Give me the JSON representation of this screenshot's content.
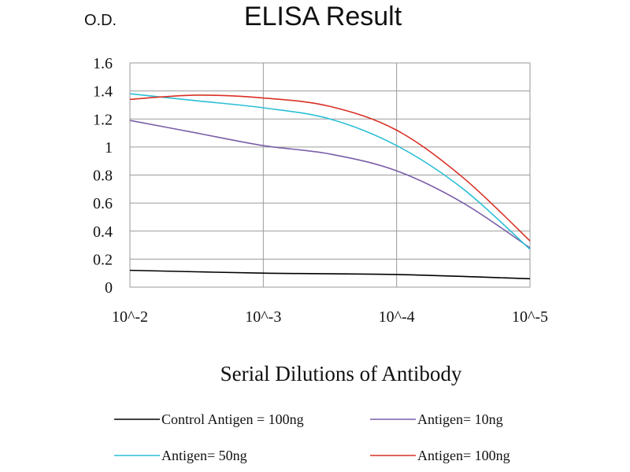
{
  "chart_data": {
    "type": "line",
    "title": "ELISA Result",
    "ylabel": "O.D.",
    "xlabel": "Serial Dilutions of Antibody",
    "categories": [
      "10^-2",
      "10^-3",
      "10^-4",
      "10^-5"
    ],
    "ylim": [
      0,
      1.6
    ],
    "yticks": [
      "0",
      "0.2",
      "0.4",
      "0.6",
      "0.8",
      "1",
      "1.2",
      "1.4",
      "1.6"
    ],
    "grid": true,
    "legend_position": "bottom",
    "series": [
      {
        "name": "Control Antigen = 100ng",
        "color": "#000000",
        "points": [
          [
            0,
            0.12
          ],
          [
            1,
            0.1
          ],
          [
            2,
            0.09
          ],
          [
            3,
            0.06
          ]
        ]
      },
      {
        "name": "Antigen= 10ng",
        "color": "#7b5ea8",
        "points": [
          [
            0,
            1.19
          ],
          [
            0.5,
            1.1
          ],
          [
            1,
            1.01
          ],
          [
            1.5,
            0.95
          ],
          [
            2,
            0.83
          ],
          [
            2.5,
            0.6
          ],
          [
            3,
            0.28
          ]
        ]
      },
      {
        "name": "Antigen= 50ng",
        "color": "#2bbfd6",
        "points": [
          [
            0,
            1.38
          ],
          [
            0.5,
            1.33
          ],
          [
            1,
            1.28
          ],
          [
            1.5,
            1.2
          ],
          [
            2,
            1.01
          ],
          [
            2.5,
            0.7
          ],
          [
            3,
            0.27
          ]
        ]
      },
      {
        "name": "Antigen= 100ng",
        "color": "#d93025",
        "points": [
          [
            0,
            1.34
          ],
          [
            0.5,
            1.37
          ],
          [
            1,
            1.35
          ],
          [
            1.5,
            1.29
          ],
          [
            2,
            1.12
          ],
          [
            2.5,
            0.78
          ],
          [
            3,
            0.33
          ]
        ]
      }
    ]
  }
}
